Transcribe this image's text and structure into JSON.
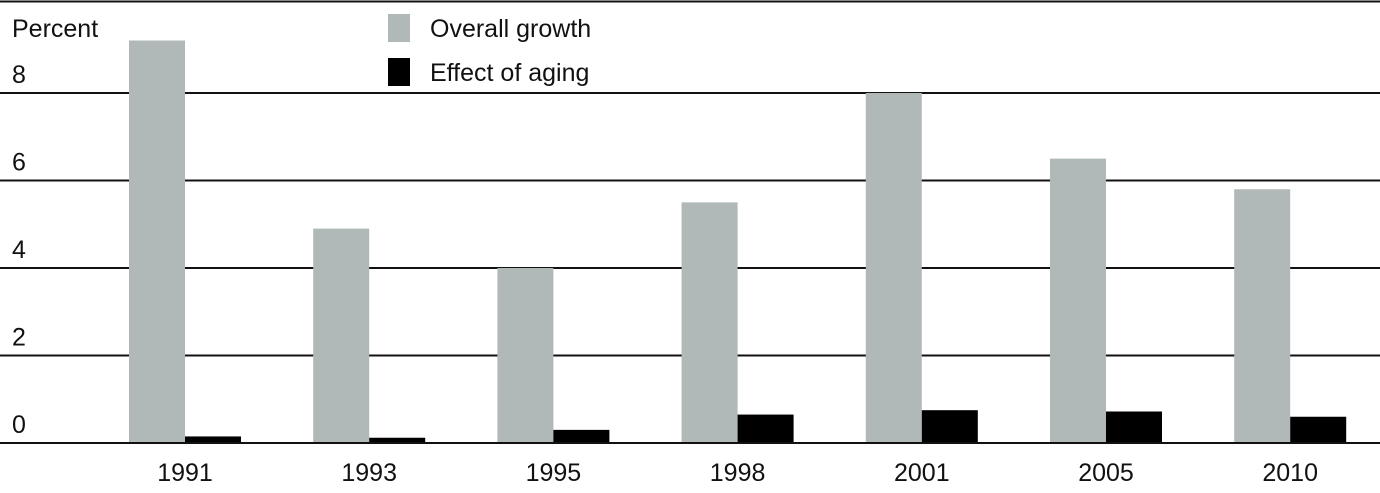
{
  "chart_data": {
    "type": "bar",
    "title": "",
    "xlabel": "",
    "ylabel": "Percent",
    "ylim": [
      0,
      9.3
    ],
    "yticks": [
      0,
      2,
      4,
      6,
      8
    ],
    "grid": true,
    "legend_position": "top-center",
    "categories": [
      "1991",
      "1993",
      "1995",
      "1998",
      "2001",
      "2005",
      "2010"
    ],
    "series": [
      {
        "name": "Overall growth",
        "color": "#b0b9b8",
        "values": [
          9.2,
          4.9,
          4.0,
          5.5,
          8.0,
          6.5,
          5.8
        ]
      },
      {
        "name": "Effect of aging",
        "color": "#000000",
        "values": [
          0.15,
          0.12,
          0.3,
          0.65,
          0.75,
          0.72,
          0.6
        ]
      }
    ]
  }
}
